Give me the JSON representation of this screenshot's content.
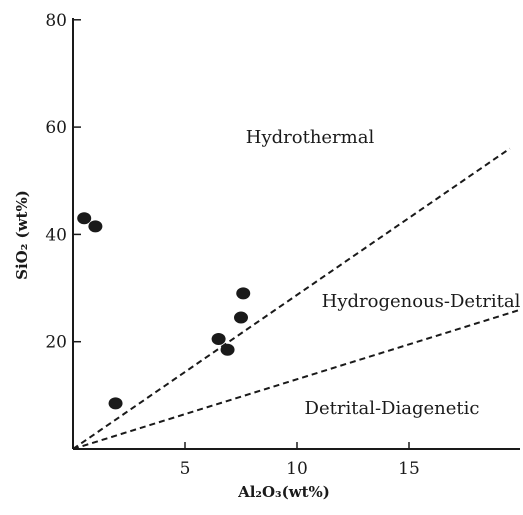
{
  "chart_data": {
    "type": "scatter",
    "title": "",
    "xlabel": "Al₂O₃(wt%)",
    "ylabel": "SiO₂ (wt%)",
    "xlim": [
      0,
      20
    ],
    "ylim": [
      0,
      80
    ],
    "x_ticks": [
      5,
      10,
      15
    ],
    "y_ticks": [
      20,
      40,
      60,
      80
    ],
    "grid": false,
    "points": [
      {
        "x": 0.5,
        "y": 43
      },
      {
        "x": 1.0,
        "y": 41.5
      },
      {
        "x": 1.9,
        "y": 8.5
      },
      {
        "x": 6.5,
        "y": 20.5
      },
      {
        "x": 6.9,
        "y": 18.5
      },
      {
        "x": 7.5,
        "y": 24.5
      },
      {
        "x": 7.6,
        "y": 29
      }
    ],
    "boundary_lines": [
      {
        "from": [
          0,
          0
        ],
        "to": [
          19.5,
          56
        ]
      },
      {
        "from": [
          0,
          0
        ],
        "to": [
          20,
          26
        ]
      }
    ],
    "regions": [
      "Hydrothermal",
      "Hydrogenous-Detrital",
      "Detrital-Diagenetic"
    ]
  },
  "colors": {
    "ink": "#1a1a1a",
    "background": "#ffffff"
  }
}
